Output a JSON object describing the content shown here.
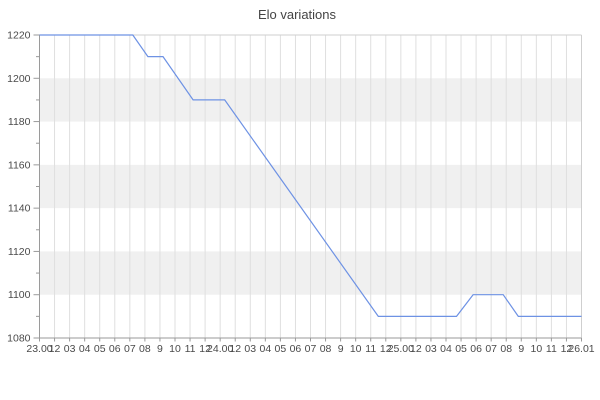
{
  "chart_data": {
    "type": "line",
    "title": "Elo variations",
    "xlabel": "",
    "ylabel": "",
    "ylim": [
      1080,
      1220
    ],
    "y_ticks": [
      1080,
      1100,
      1120,
      1140,
      1160,
      1180,
      1200,
      1220
    ],
    "y_minor_step": 10,
    "x_tick_labels": [
      "23.00",
      "12",
      "03",
      "04",
      "05",
      "06",
      "07",
      "08",
      "9",
      "10",
      "11",
      "12",
      "24.00",
      "12",
      "03",
      "04",
      "05",
      "06",
      "07",
      "08",
      "9",
      "10",
      "11",
      "12",
      "25.00",
      "12",
      "03",
      "04",
      "05",
      "06",
      "07",
      "08",
      "9",
      "10",
      "11",
      "12",
      "26.01"
    ],
    "grid": true,
    "legend_position": "none",
    "plot_bands": [
      [
        1100,
        1120
      ],
      [
        1140,
        1160
      ],
      [
        1180,
        1200
      ]
    ],
    "series": [
      {
        "name": "Elo",
        "points": [
          [
            0.0,
            1220
          ],
          [
            6.2,
            1220
          ],
          [
            7.2,
            1210
          ],
          [
            8.2,
            1210
          ],
          [
            10.2,
            1190
          ],
          [
            12.3,
            1190
          ],
          [
            22.5,
            1090
          ],
          [
            27.7,
            1090
          ],
          [
            28.8,
            1100
          ],
          [
            30.8,
            1100
          ],
          [
            31.8,
            1090
          ],
          [
            36.0,
            1090
          ]
        ]
      }
    ]
  },
  "colors": {
    "line": "#6e92e4",
    "band": "#f0f0f0",
    "grid": "#dfdfdf",
    "axis": "#9a9a9a",
    "border": "#cfcfcf",
    "tick_text": "#4a4a4a",
    "title_text": "#444444"
  }
}
